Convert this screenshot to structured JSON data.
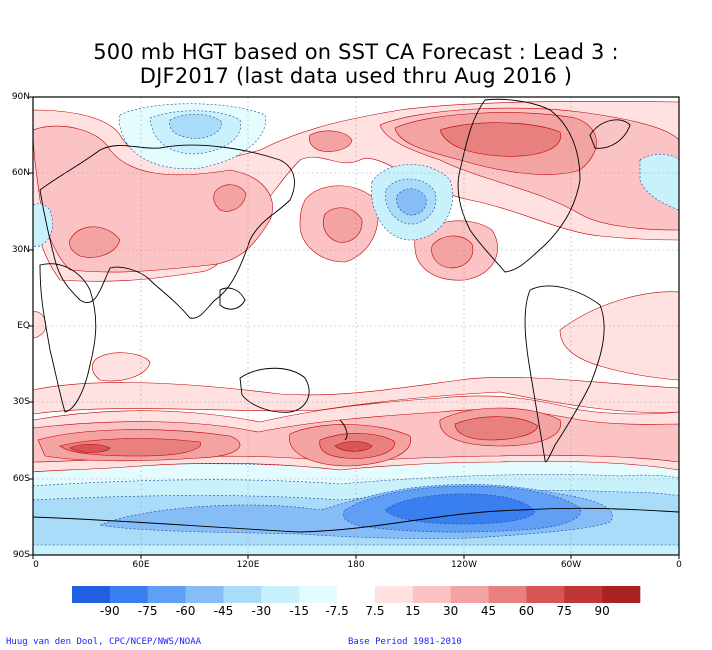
{
  "title": {
    "line1": "500 mb HGT based on SST CA Forecast : Lead 3 :",
    "line2": "DJF2017 (last data used thru Aug 2016 )"
  },
  "axes": {
    "lat_labels": [
      "90N",
      "60N",
      "30N",
      "EQ",
      "30S",
      "60S",
      "90S"
    ],
    "lon_labels": [
      "0",
      "60E",
      "120E",
      "180",
      "120W",
      "60W",
      "0"
    ]
  },
  "colorbar": {
    "labels": [
      "-90",
      "-75",
      "-60",
      "-45",
      "-30",
      "-15",
      "-7.5",
      "7.5",
      "15",
      "30",
      "45",
      "60",
      "75",
      "90"
    ],
    "colors": [
      "#1f5fe0",
      "#3a7ff0",
      "#5f9ff5",
      "#86bdf7",
      "#a9dcf9",
      "#c9f1fb",
      "#e4fcfd",
      "#ffffff",
      "#ffe1e1",
      "#fcc3c4",
      "#f4a3a3",
      "#e88080",
      "#d85555",
      "#c03535",
      "#a82222"
    ]
  },
  "footer": {
    "credit": "Huug van den Dool, CPC/NCEP/NWS/NOAA",
    "base_period": "Base Period 1981-2010"
  }
}
